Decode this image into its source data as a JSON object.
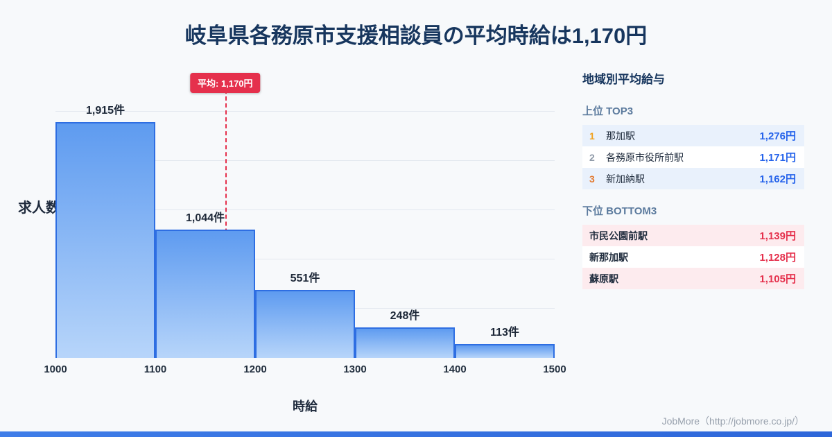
{
  "title": "岐阜県各務原市支援相談員の平均時給は1,170円",
  "chart_data": {
    "type": "bar",
    "title": "岐阜県各務原市支援相談員の平均時給は1,170円",
    "bins": [
      "1000",
      "1100",
      "1200",
      "1300",
      "1400",
      "1500"
    ],
    "values": [
      1915,
      1044,
      551,
      248,
      113
    ],
    "bar_labels": [
      "1,915件",
      "1,044件",
      "551件",
      "248件",
      "113件"
    ],
    "xlabel": "時給",
    "ylabel": "求人数",
    "xlim": [
      1000,
      1500
    ],
    "ylim": [
      0,
      2000
    ],
    "grid": "horizontal",
    "average": 1170,
    "average_label": "平均: 1,170円"
  },
  "sidebar": {
    "title": "地域別平均給与",
    "top3": {
      "heading": "上位 TOP3",
      "rows": [
        {
          "rank": "1",
          "name": "那加駅",
          "value": "1,276円"
        },
        {
          "rank": "2",
          "name": "各務原市役所前駅",
          "value": "1,171円"
        },
        {
          "rank": "3",
          "name": "新加納駅",
          "value": "1,162円"
        }
      ]
    },
    "bottom3": {
      "heading": "下位 BOTTOM3",
      "rows": [
        {
          "name": "市民公園前駅",
          "value": "1,139円"
        },
        {
          "name": "新那加駅",
          "value": "1,128円"
        },
        {
          "name": "蘇原駅",
          "value": "1,105円"
        }
      ]
    }
  },
  "footer": {
    "credit": "JobMore（http://jobmore.co.jp/）"
  },
  "colors": {
    "title_navy": "#17365e",
    "bar_fill_top": "#5e9bf0",
    "bar_fill_bottom": "#b7d5fa",
    "bar_border": "#2e6ee2",
    "average_red": "#e5304c",
    "value_blue": "#2563eb",
    "value_red": "#e5304c",
    "rank1_gold": "#f0a11e",
    "rank2_gray": "#8f9aa8",
    "rank3_orange": "#e2792f",
    "bottom_bar_blue": "#3f7de8"
  }
}
